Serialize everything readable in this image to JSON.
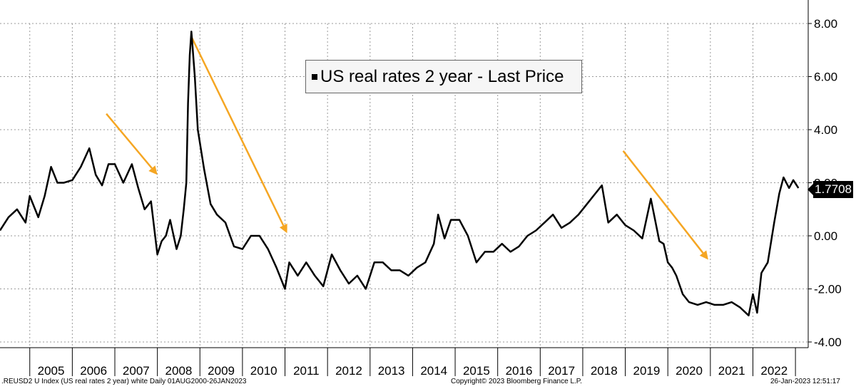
{
  "chart_data": {
    "type": "line",
    "title": "",
    "xlabel": "",
    "ylabel": "",
    "ylim": [
      -4,
      8
    ],
    "yticks": [
      "8.00",
      "6.00",
      "4.00",
      "2.00",
      "0.00",
      "-2.00",
      "-4.00"
    ],
    "ytick_values": [
      8,
      6,
      4,
      2,
      0,
      -2,
      -4
    ],
    "xlim": [
      2004.3,
      2023.3
    ],
    "year_labels": [
      "2005",
      "2006",
      "2007",
      "2008",
      "2009",
      "2010",
      "2011",
      "2012",
      "2013",
      "2014",
      "2015",
      "2016",
      "2017",
      "2018",
      "2019",
      "2020",
      "2021",
      "2022"
    ],
    "grid": true,
    "legend_position": "top-center",
    "series": [
      {
        "name": "US real rates 2 year - Last Price",
        "color": "#000000",
        "last_value_label": "1.7708",
        "x": [
          2004.3,
          2004.5,
          2004.7,
          2004.9,
          2005.0,
          2005.2,
          2005.35,
          2005.5,
          2005.65,
          2005.8,
          2006.0,
          2006.2,
          2006.4,
          2006.55,
          2006.7,
          2006.85,
          2007.0,
          2007.2,
          2007.4,
          2007.55,
          2007.7,
          2007.85,
          2008.0,
          2008.1,
          2008.2,
          2008.3,
          2008.45,
          2008.55,
          2008.62,
          2008.68,
          2008.72,
          2008.76,
          2008.8,
          2008.88,
          2008.95,
          2009.1,
          2009.25,
          2009.4,
          2009.6,
          2009.8,
          2010.0,
          2010.2,
          2010.4,
          2010.6,
          2010.8,
          2011.0,
          2011.1,
          2011.3,
          2011.5,
          2011.7,
          2011.9,
          2012.1,
          2012.3,
          2012.5,
          2012.7,
          2012.9,
          2013.1,
          2013.3,
          2013.5,
          2013.7,
          2013.9,
          2014.1,
          2014.3,
          2014.5,
          2014.6,
          2014.75,
          2014.9,
          2015.1,
          2015.3,
          2015.5,
          2015.7,
          2015.9,
          2016.1,
          2016.3,
          2016.5,
          2016.7,
          2016.9,
          2017.1,
          2017.3,
          2017.5,
          2017.7,
          2017.9,
          2018.1,
          2018.3,
          2018.45,
          2018.6,
          2018.8,
          2019.0,
          2019.2,
          2019.4,
          2019.6,
          2019.8,
          2019.9,
          2020.0,
          2020.1,
          2020.2,
          2020.35,
          2020.5,
          2020.7,
          2020.9,
          2021.1,
          2021.3,
          2021.5,
          2021.7,
          2021.9,
          2022.0,
          2022.1,
          2022.2,
          2022.35,
          2022.5,
          2022.62,
          2022.72,
          2022.85,
          2022.95,
          2023.07
        ],
        "values": [
          0.2,
          0.7,
          1.0,
          0.5,
          1.5,
          0.7,
          1.5,
          2.6,
          2.0,
          2.0,
          2.1,
          2.6,
          3.3,
          2.3,
          1.9,
          2.7,
          2.7,
          2.0,
          2.7,
          1.8,
          1.0,
          1.3,
          -0.7,
          -0.2,
          0.0,
          0.6,
          -0.5,
          0.0,
          1.0,
          2.0,
          5.0,
          6.8,
          7.7,
          6.0,
          4.0,
          2.5,
          1.2,
          0.8,
          0.5,
          -0.4,
          -0.5,
          0.0,
          0.0,
          -0.5,
          -1.2,
          -2.0,
          -1.0,
          -1.5,
          -1.0,
          -1.5,
          -1.9,
          -0.7,
          -1.3,
          -1.8,
          -1.5,
          -2.0,
          -1.0,
          -1.0,
          -1.3,
          -1.3,
          -1.5,
          -1.2,
          -1.0,
          -0.3,
          0.8,
          -0.1,
          0.6,
          0.6,
          0.0,
          -1.0,
          -0.6,
          -0.6,
          -0.3,
          -0.6,
          -0.4,
          0.0,
          0.2,
          0.5,
          0.8,
          0.3,
          0.5,
          0.8,
          1.2,
          1.6,
          1.9,
          0.5,
          0.8,
          0.4,
          0.2,
          -0.1,
          1.4,
          -0.2,
          -0.3,
          -1.0,
          -1.2,
          -1.5,
          -2.2,
          -2.5,
          -2.6,
          -2.5,
          -2.6,
          -2.6,
          -2.5,
          -2.7,
          -3.0,
          -2.2,
          -2.9,
          -1.4,
          -1.0,
          0.5,
          1.6,
          2.2,
          1.8,
          2.1,
          1.8
        ]
      }
    ],
    "annotations": [
      {
        "type": "arrow",
        "color": "#f5a623",
        "from": [
          2006.8,
          4.6
        ],
        "to": [
          2008.0,
          2.3
        ]
      },
      {
        "type": "arrow",
        "color": "#f5a623",
        "from": [
          2008.8,
          7.5
        ],
        "to": [
          2011.05,
          0.1
        ]
      },
      {
        "type": "arrow",
        "color": "#f5a623",
        "from": [
          2018.95,
          3.2
        ],
        "to": [
          2020.95,
          -0.9
        ]
      }
    ]
  },
  "footer": {
    "left": ".REUSD2 U Index (US real rates 2 year) white  Daily 01AUG2000-26JAN2023",
    "center": "Copyright© 2023 Bloomberg Finance L.P.",
    "right": "26-Jan-2023 12:51:17"
  }
}
